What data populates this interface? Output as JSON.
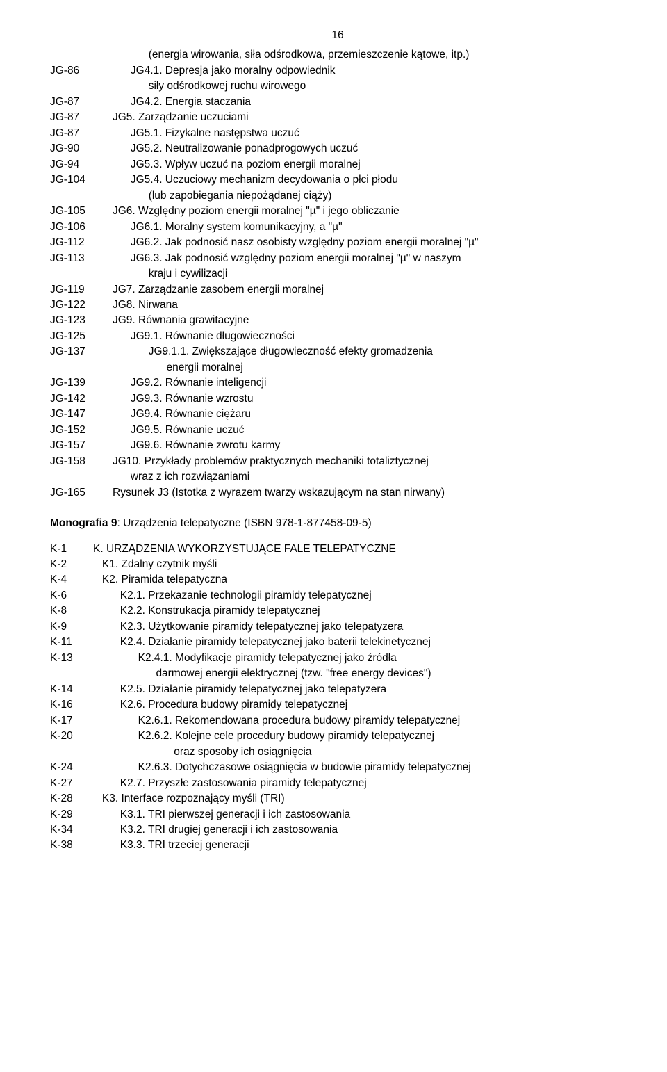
{
  "page_number": "16",
  "section_jg": {
    "entries": [
      {
        "code": "",
        "label": "            (energia wirowania, siła odśrodkowa, przemieszczenie kątowe, itp.)"
      },
      {
        "code": "JG-86",
        "label": "      JG4.1. Depresja jako moralny odpowiednik"
      },
      {
        "code": "",
        "label": "            siły odśrodkowej ruchu wirowego"
      },
      {
        "code": "JG-87",
        "label": "      JG4.2. Energia staczania"
      },
      {
        "code": "JG-87",
        "label": "JG5. Zarządzanie uczuciami"
      },
      {
        "code": "JG-87",
        "label": "      JG5.1. Fizykalne następstwa uczuć"
      },
      {
        "code": "JG-90",
        "label": "      JG5.2. Neutralizowanie ponadprogowych uczuć"
      },
      {
        "code": "JG-94",
        "label": "      JG5.3. Wpływ uczuć na poziom energii moralnej"
      },
      {
        "code": "JG-104",
        "label": "      JG5.4. Uczuciowy mechanizm decydowania o płci płodu"
      },
      {
        "code": "",
        "label": "            (lub zapobiegania niepożądanej ciąży)"
      },
      {
        "code": "JG-105",
        "label": "JG6. Względny poziom energii moralnej \"µ\" i jego obliczanie"
      },
      {
        "code": "JG-106",
        "label": "      JG6.1. Moralny system komunikacyjny, a \"µ\""
      },
      {
        "code": "JG-112",
        "label": "      JG6.2. Jak podnosić nasz osobisty względny poziom energii moralnej \"µ\""
      },
      {
        "code": "JG-113",
        "label": "      JG6.3. Jak podnosić względny poziom energii moralnej \"µ\" w naszym"
      },
      {
        "code": "",
        "label": "            kraju i cywilizacji"
      },
      {
        "code": "JG-119",
        "label": "JG7. Zarządzanie zasobem energii moralnej"
      },
      {
        "code": "JG-122",
        "label": "JG8. Nirwana"
      },
      {
        "code": "JG-123",
        "label": "JG9. Równania grawitacyjne"
      },
      {
        "code": "JG-125",
        "label": "      JG9.1. Równanie długowieczności"
      },
      {
        "code": "JG-137",
        "label": "            JG9.1.1. Zwiększające długowieczność efekty gromadzenia"
      },
      {
        "code": "",
        "label": "                  energii moralnej"
      },
      {
        "code": "JG-139",
        "label": "      JG9.2. Równanie inteligencji"
      },
      {
        "code": "JG-142",
        "label": "      JG9.3. Równanie wzrostu"
      },
      {
        "code": "JG-147",
        "label": "      JG9.4. Równanie ciężaru"
      },
      {
        "code": "JG-152",
        "label": "      JG9.5. Równanie uczuć"
      },
      {
        "code": "JG-157",
        "label": "      JG9.6. Równanie zwrotu karmy"
      },
      {
        "code": "JG-158",
        "label": "JG10. Przykłady problemów praktycznych mechaniki totaliztycznej"
      },
      {
        "code": "",
        "label": "      wraz z ich rozwiązaniami"
      },
      {
        "code": "JG-165",
        "label": "Rysunek J3 (Istotka z wyrazem twarzy wskazującym na stan nirwany)"
      }
    ]
  },
  "monograph_heading": "Monografia 9: Urządzenia telepatyczne (ISBN 978-1-877458-09-5)",
  "section_k": {
    "entries": [
      {
        "code": "K-1",
        "label": "K. URZĄDZENIA WYKORZYSTUJĄCE FALE TELEPATYCZNE"
      },
      {
        "code": "K-2",
        "label": "   K1. Zdalny czytnik myśli"
      },
      {
        "code": "K-4",
        "label": "   K2. Piramida telepatyczna"
      },
      {
        "code": "K-6",
        "label": "         K2.1. Przekazanie technologii piramidy telepatycznej"
      },
      {
        "code": "K-8",
        "label": "         K2.2. Konstrukacja piramidy telepatycznej"
      },
      {
        "code": "K-9",
        "label": "         K2.3. Użytkowanie piramidy telepatycznej jako telepatyzera"
      },
      {
        "code": "K-11",
        "label": "         K2.4. Działanie piramidy telepatycznej jako baterii telekinetycznej"
      },
      {
        "code": "K-13",
        "label": "               K2.4.1. Modyfikacje piramidy telepatycznej jako źródła"
      },
      {
        "code": "",
        "label": "                     darmowej energii elektrycznej (tzw. \"free energy devices\")"
      },
      {
        "code": "K-14",
        "label": "         K2.5. Działanie piramidy telepatycznej jako telepatyzera"
      },
      {
        "code": "K-16",
        "label": "         K2.6. Procedura budowy piramidy telepatycznej"
      },
      {
        "code": "K-17",
        "label": "               K2.6.1. Rekomendowana procedura budowy piramidy telepatycznej"
      },
      {
        "code": "K-20",
        "label": "               K2.6.2. Kolejne cele procedury budowy piramidy telepatycznej"
      },
      {
        "code": "",
        "label": "                           oraz sposoby ich osiągnięcia"
      },
      {
        "code": "K-24",
        "label": "               K2.6.3. Dotychczasowe osiągnięcia w budowie piramidy telepatycznej"
      },
      {
        "code": "K-27",
        "label": "         K2.7. Przyszłe zastosowania piramidy telepatycznej"
      },
      {
        "code": "K-28",
        "label": "   K3. Interface rozpoznający myśli (TRI)"
      },
      {
        "code": "K-29",
        "label": "         K3.1. TRI pierwszej generacji i ich zastosowania"
      },
      {
        "code": "K-34",
        "label": "         K3.2. TRI drugiej generacji i ich zastosowania"
      },
      {
        "code": "K-38",
        "label": "         K3.3. TRI trzeciej generacji"
      }
    ]
  }
}
